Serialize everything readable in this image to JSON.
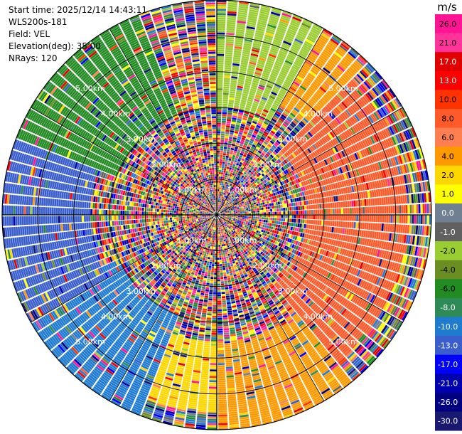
{
  "info": {
    "start_time": "Start time: 2025/12/14 14:43:11",
    "site": "WLS200s-181",
    "field": "Field: VEL",
    "elevation": "Elevation(deg): 35.00",
    "nrays": "NRays: 120"
  },
  "chart_data": {
    "type": "ppi",
    "field": "VEL",
    "nrays": 120,
    "max_range_km": 6.0,
    "range_rings_km": [
      1,
      2,
      3,
      4,
      5,
      6
    ],
    "ring_labels": [
      "1.00km",
      "2.00km",
      "3.00km",
      "4.00km",
      "5.00km"
    ],
    "spokes_deg": [
      0,
      30,
      60,
      90,
      120,
      150,
      180,
      210,
      240,
      270,
      300,
      330
    ],
    "colorbar": {
      "unit": "m/s",
      "tick_labels": [
        "26.0",
        "21.0",
        "17.0",
        "13.0",
        "10.0",
        "8.0",
        "6.0",
        "4.0",
        "2.0",
        "1.0",
        "0.0",
        "-1.0",
        "-2.0",
        "-4.0",
        "-6.0",
        "-8.0",
        "-10.0",
        "-13.0",
        "-17.0",
        "-21.0",
        "-26.0",
        "-30.0"
      ],
      "colors": [
        "#ff1493",
        "#ff3399",
        "#e00000",
        "#ff0000",
        "#ff3300",
        "#ff5a2a",
        "#ff7f50",
        "#ff9900",
        "#ffd700",
        "#ffff00",
        "#708090",
        "#606060",
        "#9acd32",
        "#6b8e23",
        "#228b22",
        "#2e8b57",
        "#1e7bd0",
        "#3a5fcd",
        "#0000ff",
        "#0000b0",
        "#000080",
        "#191970"
      ]
    },
    "regions": [
      {
        "azimuth_deg": [
          290,
          340
        ],
        "range_km": [
          3.0,
          6.0
        ],
        "color": "#228b22"
      },
      {
        "azimuth_deg": [
          240,
          300
        ],
        "range_km": [
          3.5,
          6.0
        ],
        "color": "#3a5fcd"
      },
      {
        "azimuth_deg": [
          200,
          245
        ],
        "range_km": [
          3.0,
          6.0
        ],
        "color": "#1e7bd0"
      },
      {
        "azimuth_deg": [
          45,
          140
        ],
        "range_km": [
          2.5,
          5.3
        ],
        "color": "#ff5a2a"
      },
      {
        "azimuth_deg": [
          140,
          180
        ],
        "range_km": [
          3.5,
          6.0
        ],
        "color": "#ff9900"
      },
      {
        "azimuth_deg": [
          180,
          200
        ],
        "range_km": [
          3.5,
          5.5
        ],
        "color": "#ffd700"
      },
      {
        "azimuth_deg": [
          0,
          30
        ],
        "range_km": [
          3.0,
          6.0
        ],
        "color": "#9acd32"
      },
      {
        "azimuth_deg": [
          20,
          45
        ],
        "range_km": [
          3.5,
          5.8
        ],
        "color": "#ff9900"
      }
    ]
  }
}
